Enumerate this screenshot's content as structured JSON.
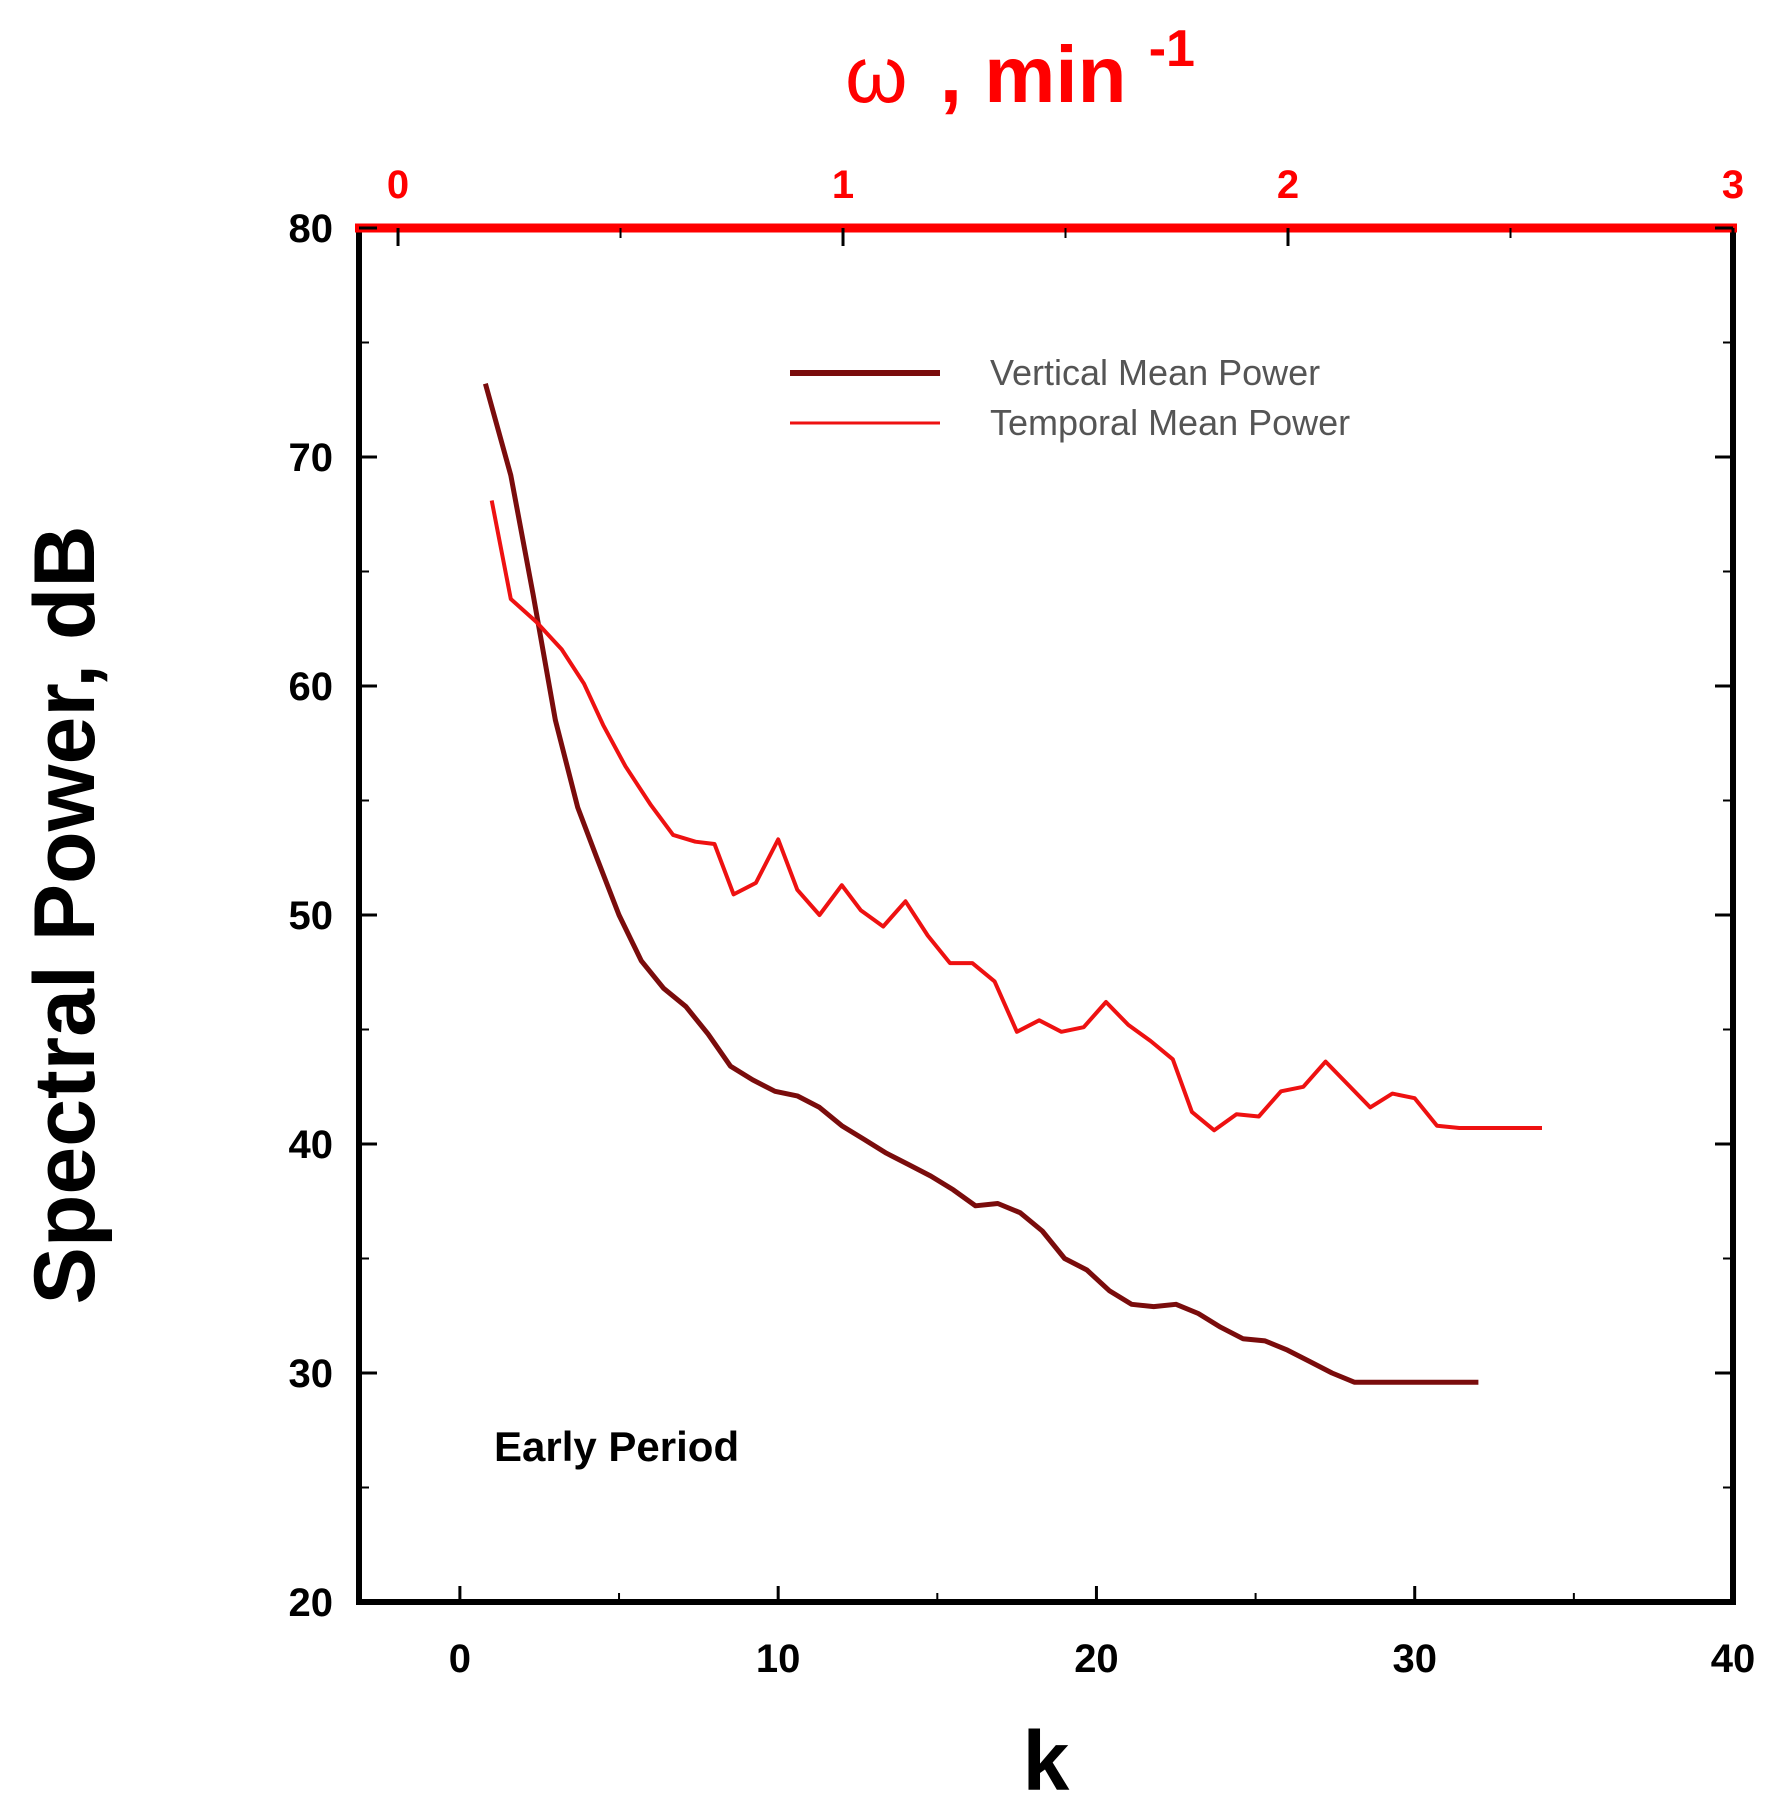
{
  "chart_data": {
    "type": "line",
    "title": "",
    "annotation": "Early Period",
    "xlabel": "k",
    "ylabel": "Spectral Power, dB",
    "top_axis": {
      "label_symbol": "ω",
      "label_rest": ", min",
      "label_superscript": "-1",
      "ticks": [
        0,
        1,
        2,
        3
      ],
      "range": [
        -0.0877,
        3
      ],
      "color": "#ff0000"
    },
    "xlim": [
      -3.17,
      40
    ],
    "ylim": [
      20,
      80
    ],
    "xticks": [
      0,
      10,
      20,
      30,
      40
    ],
    "yticks": [
      20,
      30,
      40,
      50,
      60,
      70,
      80
    ],
    "legend_position": "top-right",
    "series": [
      {
        "name": "Vertical Mean Power",
        "color": "#7a0c0c",
        "x": [
          0.8,
          1.6,
          2.3,
          3.0,
          3.7,
          4.3,
          5.0,
          5.7,
          6.4,
          7.1,
          7.8,
          8.5,
          9.2,
          9.9,
          10.6,
          11.3,
          12.0,
          12.7,
          13.4,
          14.1,
          14.8,
          15.5,
          16.2,
          16.9,
          17.6,
          18.3,
          19.0,
          19.7,
          20.4,
          21.1,
          21.8,
          22.5,
          23.2,
          23.9,
          24.6,
          25.3,
          26.0,
          26.7,
          27.4,
          28.1,
          28.8,
          29.5,
          30.2,
          30.9,
          31.6,
          32.0
        ],
        "values": [
          73.2,
          69.2,
          64.0,
          58.5,
          54.7,
          52.5,
          50.0,
          48.0,
          46.8,
          46.0,
          44.8,
          43.4,
          42.8,
          42.3,
          42.1,
          41.6,
          40.8,
          40.2,
          39.6,
          39.1,
          38.6,
          38.0,
          37.3,
          37.4,
          37.0,
          36.2,
          35.0,
          34.5,
          33.6,
          33.0,
          32.9,
          33.0,
          32.6,
          32.0,
          31.5,
          31.4,
          31.0,
          30.5,
          30.0,
          29.6,
          29.6,
          29.6,
          29.6,
          29.6,
          29.6,
          29.6
        ]
      },
      {
        "name": "Temporal Mean Power",
        "color": "#ee1111",
        "x": [
          1.0,
          1.6,
          2.4,
          3.2,
          3.9,
          4.5,
          5.2,
          6.0,
          6.7,
          7.4,
          8.0,
          8.6,
          9.3,
          10.0,
          10.6,
          11.3,
          12.0,
          12.6,
          13.3,
          14.0,
          14.7,
          15.4,
          16.1,
          16.8,
          17.5,
          18.2,
          18.9,
          19.6,
          20.3,
          21.0,
          21.7,
          22.4,
          23.0,
          23.7,
          24.4,
          25.1,
          25.8,
          26.5,
          27.2,
          27.9,
          28.6,
          29.3,
          30.0,
          30.7,
          31.4,
          32.1,
          32.8,
          33.4,
          34.0
        ],
        "values": [
          68.1,
          63.8,
          62.8,
          61.6,
          60.1,
          58.3,
          56.5,
          54.8,
          53.5,
          53.2,
          53.1,
          50.9,
          51.4,
          53.3,
          51.1,
          50.0,
          51.3,
          50.2,
          49.5,
          50.6,
          49.1,
          47.9,
          47.9,
          47.1,
          44.9,
          45.4,
          44.9,
          45.1,
          46.2,
          45.2,
          44.5,
          43.7,
          41.4,
          40.6,
          41.3,
          41.2,
          42.3,
          42.5,
          43.6,
          42.6,
          41.6,
          42.2,
          42.0,
          40.8,
          40.7,
          40.7,
          40.7,
          40.7,
          40.7
        ]
      }
    ]
  }
}
